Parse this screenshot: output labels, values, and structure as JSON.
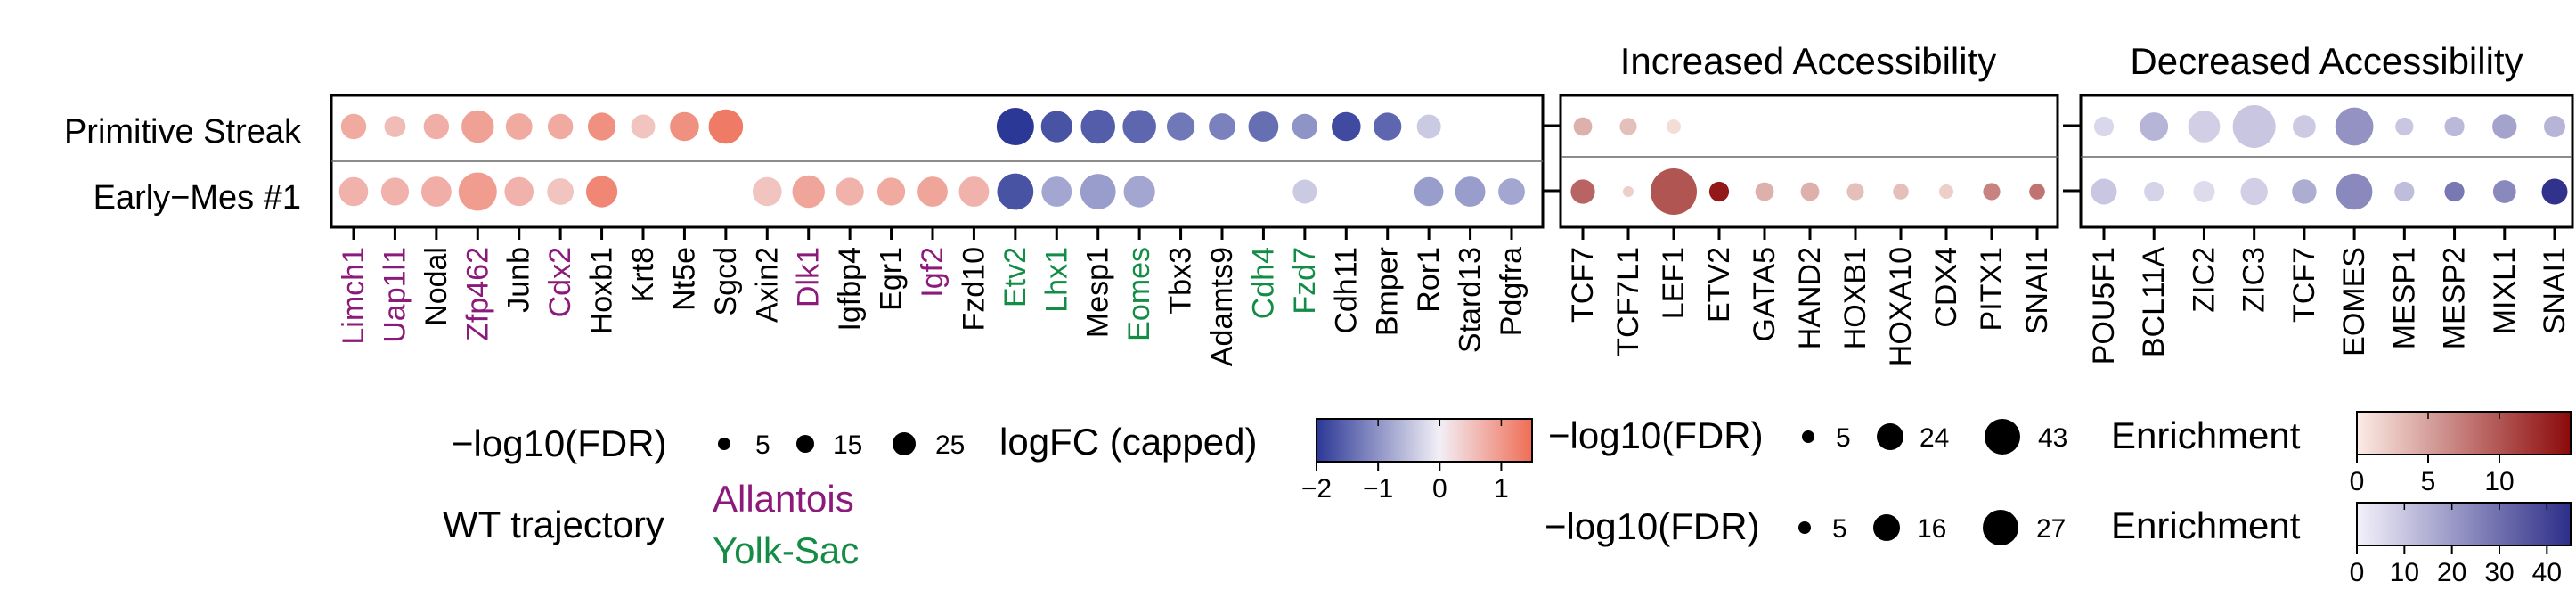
{
  "chart_data": [
    {
      "type": "scatter",
      "panel": "differential-expression",
      "title": "",
      "rows": [
        "Primitive Streak",
        "Early−Mes #1"
      ],
      "genes": [
        "Limch1",
        "Uap1l1",
        "Nodal",
        "Zfp462",
        "Junb",
        "Cdx2",
        "Hoxb1",
        "Krt8",
        "Nt5e",
        "Sgcd",
        "Axin2",
        "Dlk1",
        "Igfbp4",
        "Egr1",
        "Igf2",
        "Fzd10",
        "Etv2",
        "Lhx1",
        "Mesp1",
        "Eomes",
        "Tbx3",
        "Adamts9",
        "Cdh4",
        "Fzd7",
        "Cdh11",
        "Bmper",
        "Ror1",
        "Stard13",
        "Pdgfra"
      ],
      "gene_group": [
        "Allantois",
        "Allantois",
        "none",
        "Allantois",
        "none",
        "Allantois",
        "none",
        "none",
        "none",
        "none",
        "none",
        "Allantois",
        "none",
        "none",
        "Allantois",
        "none",
        "Yolk-Sac",
        "Yolk-Sac",
        "none",
        "Yolk-Sac",
        "none",
        "none",
        "Yolk-Sac",
        "Yolk-Sac",
        "none",
        "none",
        "none",
        "none",
        "none"
      ],
      "series": [
        {
          "name": "Primitive Streak",
          "logFC": [
            0.8,
            0.6,
            0.75,
            0.9,
            0.8,
            0.8,
            1.1,
            0.5,
            1.1,
            1.35,
            null,
            null,
            null,
            null,
            null,
            null,
            -2.0,
            -1.7,
            -1.6,
            -1.5,
            -1.3,
            -1.2,
            -1.4,
            -1.0,
            -1.8,
            -1.5,
            -0.4,
            null,
            null
          ],
          "neg_log10_FDR": [
            12,
            9,
            12,
            18,
            13,
            12,
            14,
            11,
            15,
            20,
            null,
            null,
            null,
            null,
            null,
            null,
            23,
            17,
            20,
            19,
            14,
            13,
            16,
            12,
            15,
            14,
            11,
            null,
            null
          ]
        },
        {
          "name": "Early−Mes #1",
          "logFC": [
            0.7,
            0.7,
            0.75,
            0.95,
            0.7,
            0.5,
            1.2,
            null,
            null,
            null,
            0.5,
            0.85,
            0.7,
            0.8,
            0.85,
            0.7,
            -1.7,
            -0.8,
            -0.9,
            -0.8,
            null,
            null,
            null,
            -0.4,
            null,
            null,
            -0.9,
            -0.9,
            -0.8
          ],
          "neg_log10_FDR": [
            15,
            14,
            16,
            24,
            15,
            13,
            17,
            null,
            null,
            null,
            15,
            18,
            14,
            14,
            16,
            16,
            22,
            16,
            21,
            17,
            null,
            null,
            null,
            11,
            null,
            null,
            15,
            16,
            13
          ]
        }
      ],
      "legend": {
        "size_title": "−log10(FDR)",
        "size_ticks": [
          5,
          15,
          25
        ],
        "color_title": "logFC (capped)",
        "color_ticks": [
          -2,
          -1,
          0,
          1
        ],
        "color_range": [
          -2,
          1.5
        ],
        "color_low": "#2b3896",
        "color_mid": "#f2eff6",
        "color_high": "#ef6d55",
        "group_title": "WT trajectory",
        "groups": [
          {
            "name": "Allantois",
            "color": "#8b1a7a"
          },
          {
            "name": "Yolk-Sac",
            "color": "#138c45"
          }
        ]
      }
    },
    {
      "type": "scatter",
      "panel": "increased-accessibility",
      "title": "Increased Accessibility",
      "rows": [
        "Primitive Streak",
        "Early−Mes #1"
      ],
      "motifs": [
        "TCF7",
        "TCF7L1",
        "LEF1",
        "ETV2",
        "GATA5",
        "HAND2",
        "HOXB1",
        "HOXA10",
        "CDX4",
        "PITX1",
        "SNAI1"
      ],
      "series": [
        {
          "name": "Primitive Streak",
          "enrichment": [
            4,
            3,
            1,
            null,
            null,
            null,
            null,
            null,
            null,
            null,
            null
          ],
          "neg_log10_FDR": [
            9,
            8,
            6,
            null,
            null,
            null,
            null,
            null,
            null,
            null,
            null
          ]
        },
        {
          "name": "Early−Mes #1",
          "enrichment": [
            9,
            2,
            10,
            14,
            4,
            4,
            3,
            3,
            2,
            7,
            8
          ],
          "neg_log10_FDR": [
            14,
            4,
            43,
            10,
            9,
            9,
            8,
            7,
            6,
            8,
            7
          ]
        }
      ],
      "legend": {
        "size_title": "−log10(FDR)",
        "size_ticks": [
          5,
          24,
          43
        ],
        "color_title": "Enrichment",
        "color_ticks": [
          0,
          5,
          10
        ],
        "color_range": [
          0,
          15
        ],
        "color_low": "#fcece6",
        "color_high": "#8b0a0a"
      }
    },
    {
      "type": "scatter",
      "panel": "decreased-accessibility",
      "title": "Decreased Accessibility",
      "rows": [
        "Primitive Streak",
        "Early−Mes #1"
      ],
      "motifs": [
        "POU5F1",
        "BCL11A",
        "ZIC2",
        "ZIC3",
        "TCF7",
        "EOMES",
        "MESP1",
        "MESP2",
        "MIXL1",
        "SNAI1"
      ],
      "series": [
        {
          "name": "Primitive Streak",
          "enrichment": [
            6,
            14,
            8,
            10,
            9,
            22,
            10,
            13,
            18,
            14
          ],
          "neg_log10_FDR": [
            7,
            13,
            16,
            27,
            9,
            22,
            6,
            7,
            10,
            8
          ]
        },
        {
          "name": "Early−Mes #1",
          "enrichment": [
            10,
            7,
            5,
            8,
            16,
            24,
            12,
            28,
            24,
            44
          ],
          "neg_log10_FDR": [
            11,
            7,
            8,
            12,
            10,
            20,
            7,
            7,
            9,
            11
          ]
        }
      ],
      "legend": {
        "size_title": "−log10(FDR)",
        "size_ticks": [
          5,
          16,
          27
        ],
        "color_title": "Enrichment",
        "color_ticks": [
          0,
          10,
          20,
          30,
          40
        ],
        "color_range": [
          0,
          45
        ],
        "color_low": "#f4f1fa",
        "color_high": "#2d2e88"
      }
    }
  ]
}
